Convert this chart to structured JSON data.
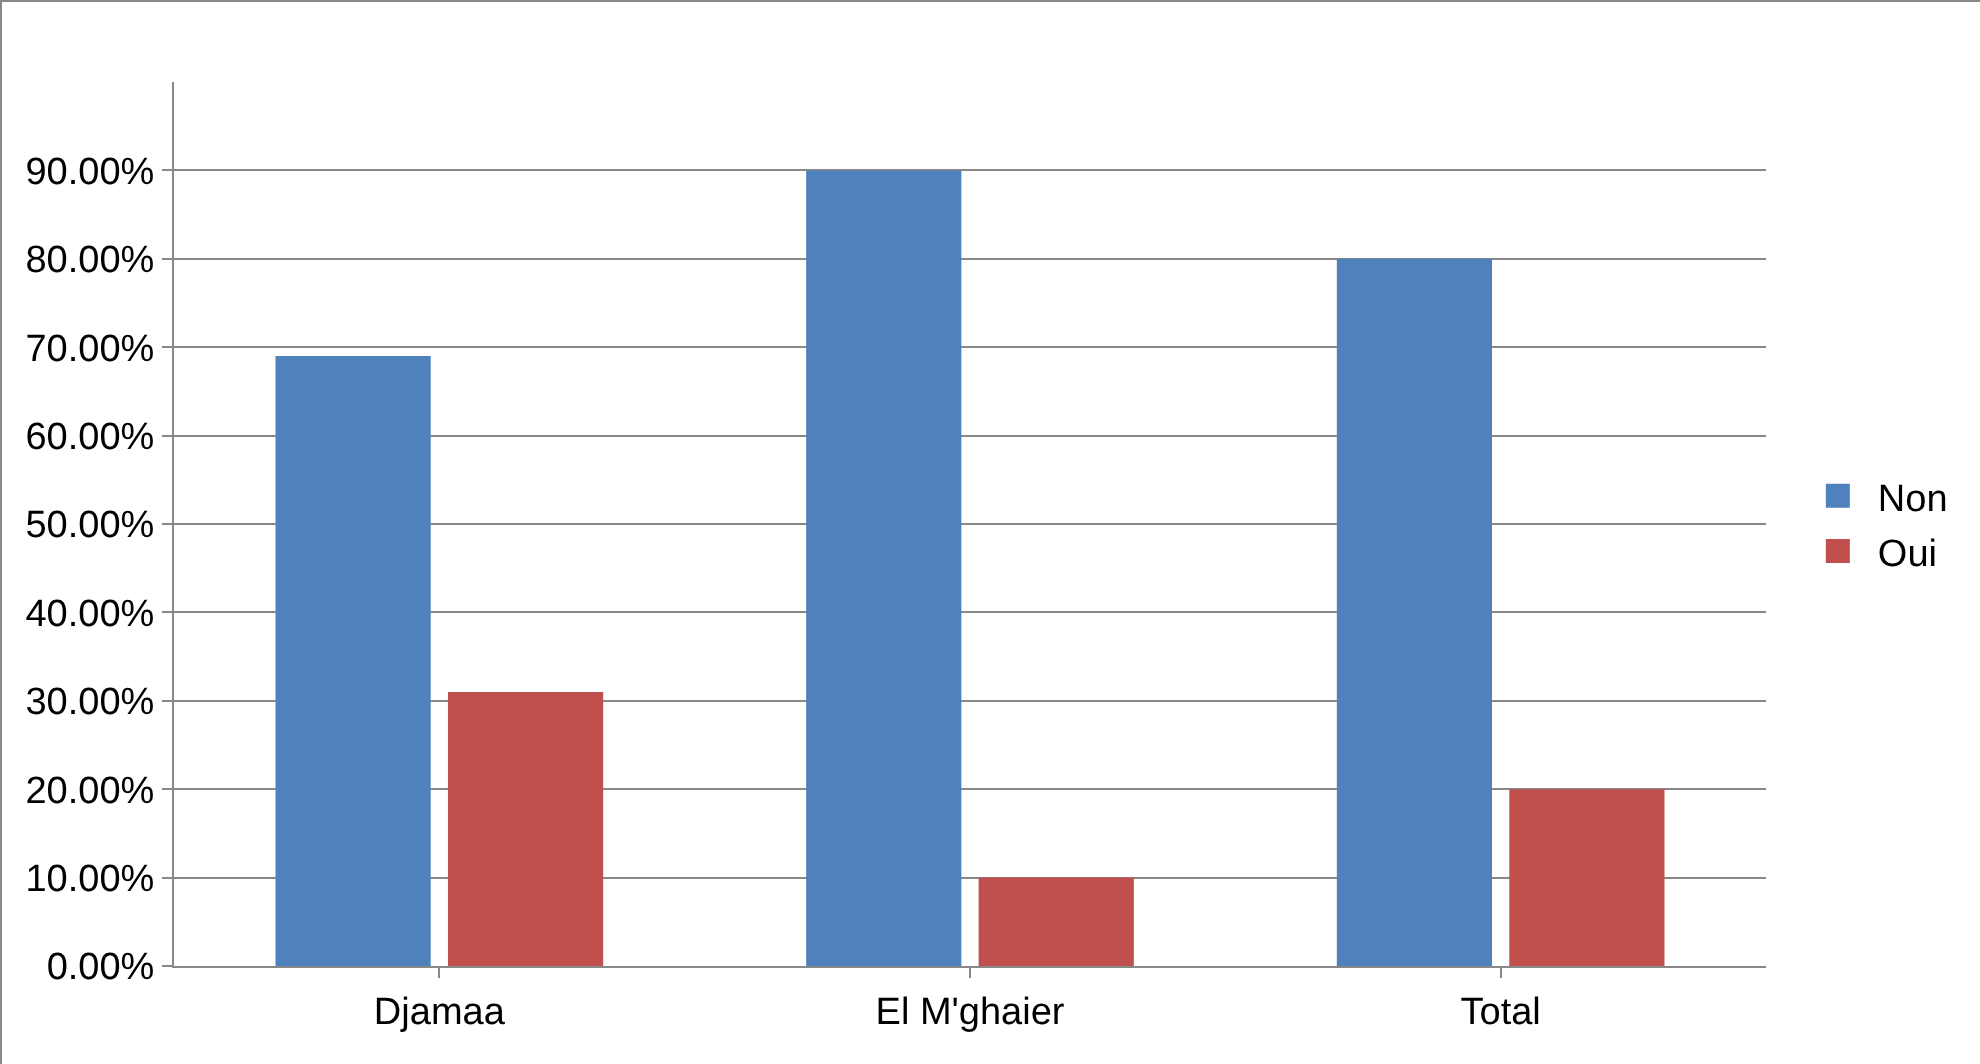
{
  "chart_data": {
    "type": "bar",
    "categories": [
      "Djamaa",
      "El M'ghaier",
      "Total"
    ],
    "series": [
      {
        "name": "Non",
        "color": "#4f81bd",
        "values": [
          69,
          90,
          80
        ]
      },
      {
        "name": "Oui",
        "color": "#c0504d",
        "values": [
          31,
          10,
          20
        ]
      }
    ],
    "ylim": [
      0,
      100
    ],
    "yticks": [
      {
        "value": 0,
        "label": "0.00%"
      },
      {
        "value": 10,
        "label": "10.00%"
      },
      {
        "value": 20,
        "label": "20.00%"
      },
      {
        "value": 30,
        "label": "30.00%"
      },
      {
        "value": 40,
        "label": "40.00%"
      },
      {
        "value": 50,
        "label": "50.00%"
      },
      {
        "value": 60,
        "label": "60.00%"
      },
      {
        "value": 70,
        "label": "70.00%"
      },
      {
        "value": 80,
        "label": "80.00%"
      },
      {
        "value": 90,
        "label": "90.00%"
      }
    ],
    "grid": "y",
    "legend": "right"
  }
}
